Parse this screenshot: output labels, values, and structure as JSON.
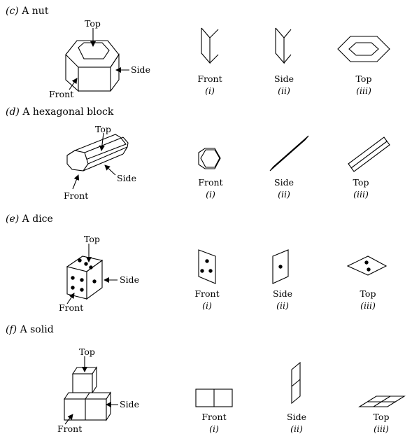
{
  "sections": [
    {
      "key": "nut",
      "letter": "(c)",
      "title": "A nut",
      "pointers": {
        "top": "Top",
        "side": "Side",
        "front": "Front"
      },
      "views": [
        {
          "name": "Front",
          "roman": "(i)"
        },
        {
          "name": "Side",
          "roman": "(ii)"
        },
        {
          "name": "Top",
          "roman": "(iii)"
        }
      ]
    },
    {
      "key": "hex",
      "letter": "(d)",
      "title": "A hexagonal block",
      "pointers": {
        "top": "Top",
        "side": "Side",
        "front": "Front"
      },
      "views": [
        {
          "name": "Front",
          "roman": "(i)"
        },
        {
          "name": "Side",
          "roman": "(ii)"
        },
        {
          "name": "Top",
          "roman": "(iii)"
        }
      ]
    },
    {
      "key": "dice",
      "letter": "(e)",
      "title": "A dice",
      "pointers": {
        "top": "Top",
        "side": "Side",
        "front": "Front"
      },
      "views": [
        {
          "name": "Front",
          "roman": "(i)"
        },
        {
          "name": "Side",
          "roman": "(ii)"
        },
        {
          "name": "Top",
          "roman": "(iii)"
        }
      ]
    },
    {
      "key": "solid",
      "letter": "(f)",
      "title": "A solid",
      "pointers": {
        "top": "Top",
        "side": "Side",
        "front": "Front"
      },
      "views": [
        {
          "name": "Front",
          "roman": "(i)"
        },
        {
          "name": "Side",
          "roman": "(ii)"
        },
        {
          "name": "Top",
          "roman": "(iii)"
        }
      ]
    }
  ]
}
